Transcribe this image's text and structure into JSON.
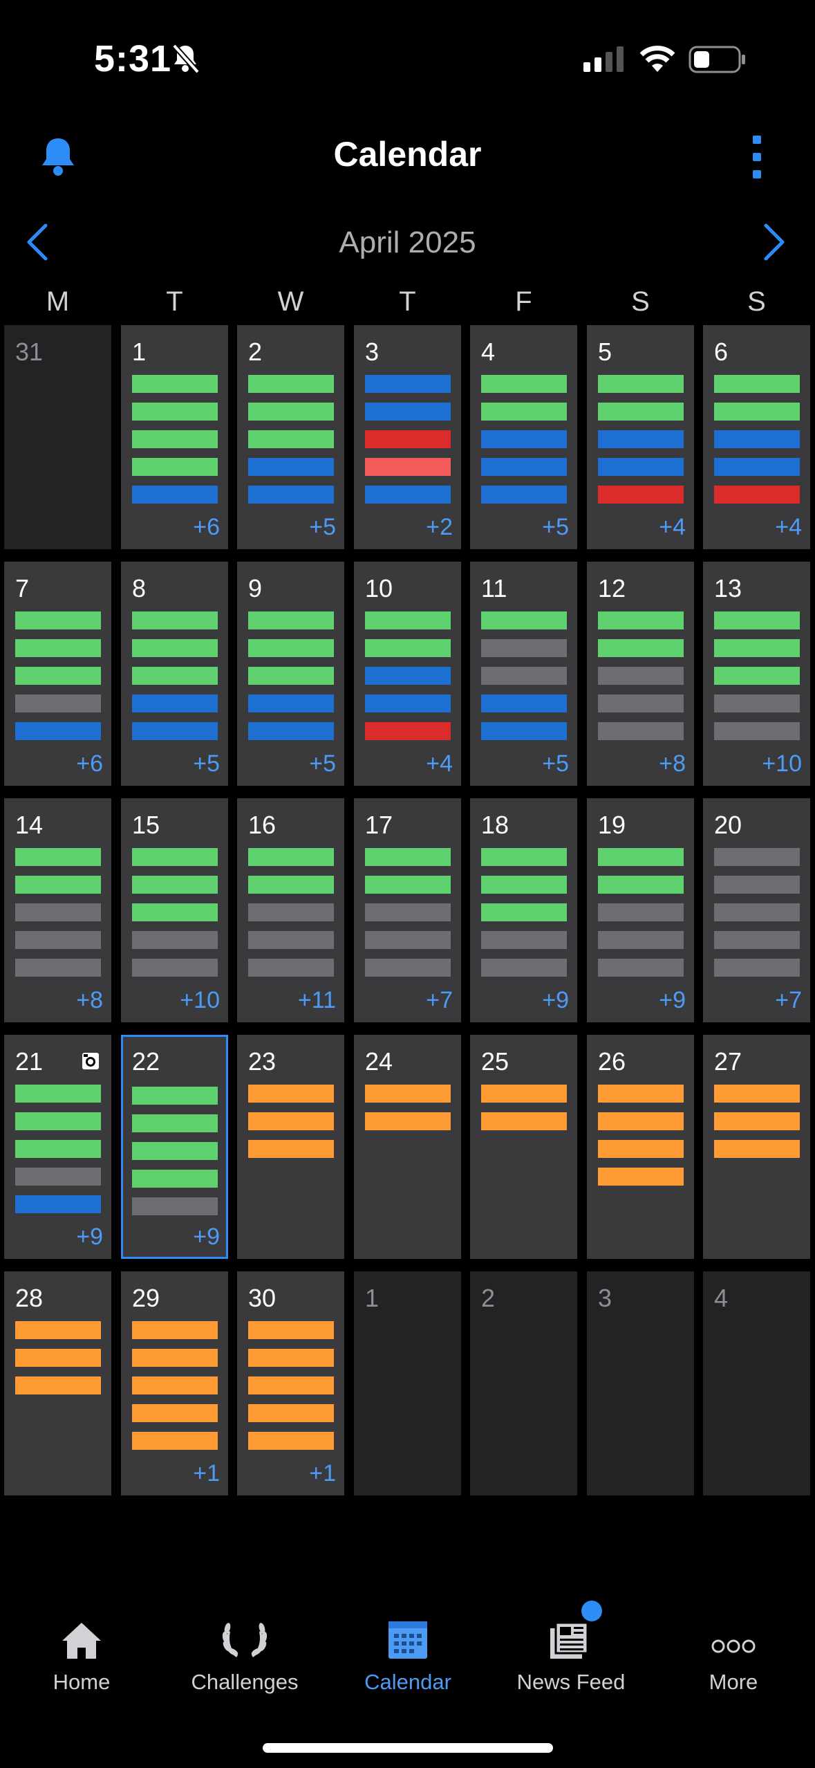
{
  "status": {
    "time": "5:31"
  },
  "header": {
    "title": "Calendar"
  },
  "month": {
    "label": "April 2025"
  },
  "weekdays": [
    "M",
    "T",
    "W",
    "T",
    "F",
    "S",
    "S"
  ],
  "colors": {
    "green": "#5fd16e",
    "blue": "#1e6fd2",
    "red": "#dc2b2b",
    "pink_red": "#f55a5a",
    "orange": "#ff9b35",
    "gray": "#6e6e72",
    "accent": "#2e8cf6"
  },
  "days": [
    {
      "n": "31",
      "out": true,
      "bars": [],
      "more": ""
    },
    {
      "n": "1",
      "bars": [
        "g",
        "g",
        "g",
        "g",
        "b"
      ],
      "more": "+6"
    },
    {
      "n": "2",
      "bars": [
        "g",
        "g",
        "g",
        "b",
        "b"
      ],
      "more": "+5"
    },
    {
      "n": "3",
      "bars": [
        "b",
        "b",
        "r",
        "pr",
        "b"
      ],
      "more": "+2"
    },
    {
      "n": "4",
      "bars": [
        "g",
        "g",
        "b",
        "b",
        "b"
      ],
      "more": "+5"
    },
    {
      "n": "5",
      "bars": [
        "g",
        "g",
        "b",
        "b",
        "r"
      ],
      "more": "+4"
    },
    {
      "n": "6",
      "bars": [
        "g",
        "g",
        "b",
        "b",
        "r"
      ],
      "more": "+4"
    },
    {
      "n": "7",
      "bars": [
        "g",
        "g",
        "g",
        "x",
        "b"
      ],
      "more": "+6"
    },
    {
      "n": "8",
      "bars": [
        "g",
        "g",
        "g",
        "b",
        "b"
      ],
      "more": "+5"
    },
    {
      "n": "9",
      "bars": [
        "g",
        "g",
        "g",
        "b",
        "b"
      ],
      "more": "+5"
    },
    {
      "n": "10",
      "bars": [
        "g",
        "g",
        "b",
        "b",
        "r"
      ],
      "more": "+4"
    },
    {
      "n": "11",
      "bars": [
        "g",
        "x",
        "x",
        "b",
        "b"
      ],
      "more": "+5"
    },
    {
      "n": "12",
      "bars": [
        "g",
        "g",
        "x",
        "x",
        "x"
      ],
      "more": "+8"
    },
    {
      "n": "13",
      "bars": [
        "g",
        "g",
        "g",
        "x",
        "x"
      ],
      "more": "+10"
    },
    {
      "n": "14",
      "bars": [
        "g",
        "g",
        "x",
        "x",
        "x"
      ],
      "more": "+8"
    },
    {
      "n": "15",
      "bars": [
        "g",
        "g",
        "g",
        "x",
        "x"
      ],
      "more": "+10"
    },
    {
      "n": "16",
      "bars": [
        "g",
        "g",
        "x",
        "x",
        "x"
      ],
      "more": "+11"
    },
    {
      "n": "17",
      "bars": [
        "g",
        "g",
        "x",
        "x",
        "x"
      ],
      "more": "+7"
    },
    {
      "n": "18",
      "bars": [
        "g",
        "g",
        "g",
        "x",
        "x"
      ],
      "more": "+9"
    },
    {
      "n": "19",
      "bars": [
        "g",
        "g",
        "x",
        "x",
        "x"
      ],
      "more": "+9"
    },
    {
      "n": "20",
      "bars": [
        "x",
        "x",
        "x",
        "x",
        "x"
      ],
      "more": "+7"
    },
    {
      "n": "21",
      "bars": [
        "g",
        "g",
        "g",
        "x",
        "b"
      ],
      "more": "+9",
      "icon": true
    },
    {
      "n": "22",
      "bars": [
        "g",
        "g",
        "g",
        "g",
        "x"
      ],
      "more": "+9",
      "selected": true
    },
    {
      "n": "23",
      "bars": [
        "o",
        "o",
        "o"
      ],
      "more": ""
    },
    {
      "n": "24",
      "bars": [
        "o",
        "o"
      ],
      "more": ""
    },
    {
      "n": "25",
      "bars": [
        "o",
        "o"
      ],
      "more": ""
    },
    {
      "n": "26",
      "bars": [
        "o",
        "o",
        "o",
        "o"
      ],
      "more": ""
    },
    {
      "n": "27",
      "bars": [
        "o",
        "o",
        "o"
      ],
      "more": ""
    },
    {
      "n": "28",
      "bars": [
        "o",
        "o",
        "o"
      ],
      "more": ""
    },
    {
      "n": "29",
      "bars": [
        "o",
        "o",
        "o",
        "o",
        "o"
      ],
      "more": "+1"
    },
    {
      "n": "30",
      "bars": [
        "o",
        "o",
        "o",
        "o",
        "o"
      ],
      "more": "+1"
    },
    {
      "n": "1",
      "out": true,
      "bars": [],
      "more": ""
    },
    {
      "n": "2",
      "out": true,
      "bars": [],
      "more": ""
    },
    {
      "n": "3",
      "out": true,
      "bars": [],
      "more": ""
    },
    {
      "n": "4",
      "out": true,
      "bars": [],
      "more": ""
    }
  ],
  "tabs": [
    {
      "label": "Home",
      "icon": "home-icon"
    },
    {
      "label": "Challenges",
      "icon": "laurel-icon"
    },
    {
      "label": "Calendar",
      "icon": "calendar-icon",
      "active": true
    },
    {
      "label": "News Feed",
      "icon": "newspaper-icon",
      "badge": true
    },
    {
      "label": "More",
      "icon": "more-icon"
    }
  ]
}
